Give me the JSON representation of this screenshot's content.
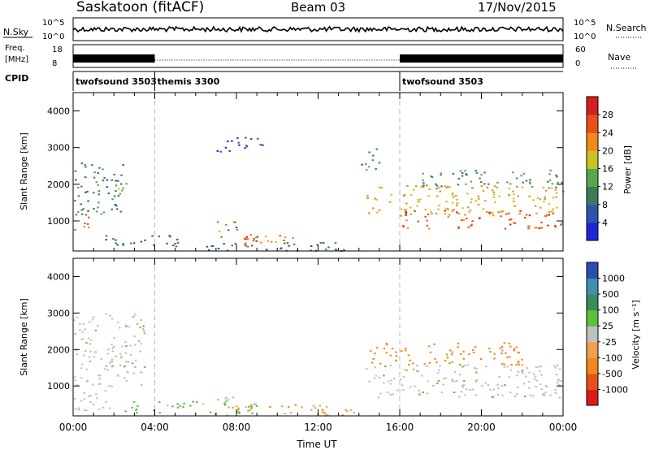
{
  "header": {
    "station": "Saskatoon (fitACF)",
    "beam": "Beam 03",
    "date": "17/Nov/2015"
  },
  "noise_panel": {
    "left_label": "N.Sky",
    "right_label": "N.Search",
    "left_ticks": [
      "10^5",
      "10^0"
    ],
    "right_ticks": [
      "10^5",
      "10^0"
    ]
  },
  "freq_panel": {
    "left_label_line1": "Freq.",
    "left_label_line2": "[MHz]",
    "right_label": "Nave",
    "left_ticks": [
      "18",
      "8"
    ],
    "right_ticks": [
      "60",
      "0"
    ]
  },
  "cpid_panel": {
    "label": "CPID",
    "modes": [
      {
        "name": "twofsound 3503",
        "start_hour": 0
      },
      {
        "name": "themis 3300",
        "start_hour": 4
      },
      {
        "name": "twofsound 3503",
        "start_hour": 16
      }
    ]
  },
  "chart_data": [
    {
      "type": "heatmap",
      "title": "",
      "xlabel": "Time UT",
      "ylabel": "Slant Range [km]",
      "xlim": [
        0,
        24
      ],
      "ylim": [
        180,
        4500
      ],
      "yticks": [
        "1000",
        "2000",
        "3000",
        "4000"
      ],
      "xticks": [
        "00:00",
        "04:00",
        "08:00",
        "12:00",
        "16:00",
        "20:00",
        "00:00"
      ],
      "colorbar": {
        "label": "Power [dB]",
        "ticks": [
          "4",
          "8",
          "12",
          "16",
          "20",
          "24",
          "28"
        ],
        "colors": [
          "#1f26d9",
          "#2f55a8",
          "#3d7a5a",
          "#57a84a",
          "#c9c223",
          "#ef8a1b",
          "#e8501a",
          "#d81e1e"
        ]
      },
      "regions": [
        {
          "t0": 0.0,
          "t1": 1.0,
          "r0": 700,
          "r1": 1200,
          "value": 24
        },
        {
          "t0": 0.0,
          "t1": 2.5,
          "r0": 1200,
          "r1": 2600,
          "value": 10
        },
        {
          "t0": 1.5,
          "t1": 5.5,
          "r0": 300,
          "r1": 650,
          "value": 8
        },
        {
          "t0": 2.0,
          "t1": 2.6,
          "r0": 1600,
          "r1": 2200,
          "value": 14
        },
        {
          "t0": 7.2,
          "t1": 9.0,
          "r0": 250,
          "r1": 600,
          "value": 28
        },
        {
          "t0": 8.2,
          "t1": 11.0,
          "r0": 300,
          "r1": 650,
          "value": 22
        },
        {
          "t0": 7.0,
          "t1": 8.5,
          "r0": 700,
          "r1": 1000,
          "value": 14
        },
        {
          "t0": 6.5,
          "t1": 14.0,
          "r0": 200,
          "r1": 450,
          "value": 8
        },
        {
          "t0": 7.0,
          "t1": 9.5,
          "r0": 2900,
          "r1": 3300,
          "value": 6
        },
        {
          "t0": 14.3,
          "t1": 24.0,
          "r0": 1200,
          "r1": 2000,
          "value": 20
        },
        {
          "t0": 16.0,
          "t1": 24.0,
          "r0": 800,
          "r1": 1300,
          "value": 26
        },
        {
          "t0": 17.0,
          "t1": 24.0,
          "r0": 1900,
          "r1": 2400,
          "value": 12
        },
        {
          "t0": 14.0,
          "t1": 15.0,
          "r0": 2400,
          "r1": 3000,
          "value": 10
        }
      ]
    },
    {
      "type": "heatmap",
      "title": "",
      "xlabel": "Time UT",
      "ylabel": "Slant Range [km]",
      "xlim": [
        0,
        24
      ],
      "ylim": [
        180,
        4500
      ],
      "yticks": [
        "1000",
        "2000",
        "3000",
        "4000"
      ],
      "xticks": [
        "00:00",
        "04:00",
        "08:00",
        "12:00",
        "16:00",
        "20:00",
        "00:00"
      ],
      "colorbar": {
        "label": "Velocity [m s⁻¹]",
        "ticks": [
          "1000",
          "500",
          "100",
          "25",
          "-25",
          "-100",
          "-500",
          "-1000"
        ],
        "colors": [
          "#2a4fb0",
          "#3f8fb0",
          "#3f8a5a",
          "#57c23a",
          "#c0c0bb",
          "#f0a050",
          "#ef8a1b",
          "#e8501a",
          "#dd1a1a"
        ]
      },
      "regions": [
        {
          "t0": 0.0,
          "t1": 3.5,
          "r0": 1000,
          "r1": 3000,
          "value": 0
        },
        {
          "t0": 0.0,
          "t1": 2.0,
          "r0": 300,
          "r1": 900,
          "value": 0
        },
        {
          "t0": 2.5,
          "t1": 9.0,
          "r0": 250,
          "r1": 600,
          "value": 50
        },
        {
          "t0": 7.5,
          "t1": 12.5,
          "r0": 200,
          "r1": 500,
          "value": -80
        },
        {
          "t0": 7.0,
          "t1": 8.5,
          "r0": 550,
          "r1": 800,
          "value": 0
        },
        {
          "t0": 14.3,
          "t1": 24.0,
          "r0": 700,
          "r1": 1600,
          "value": 0
        },
        {
          "t0": 14.5,
          "t1": 22.0,
          "r0": 1600,
          "r1": 2200,
          "value": -300
        },
        {
          "t0": 12.0,
          "t1": 14.0,
          "r0": 200,
          "r1": 450,
          "value": -80
        }
      ]
    }
  ]
}
